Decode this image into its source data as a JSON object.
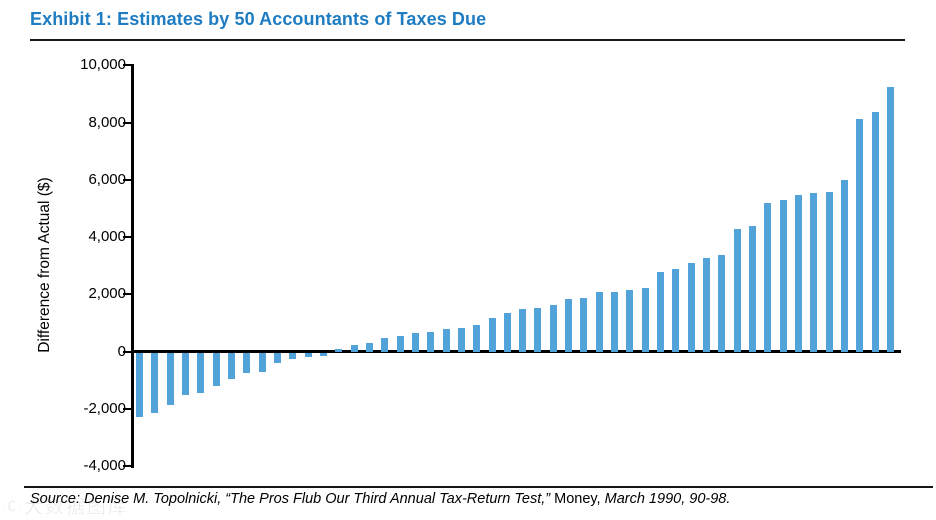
{
  "header": {
    "title": "Exhibit 1: Estimates by 50 Accountants of Taxes Due"
  },
  "chart_data": {
    "type": "bar",
    "title": "Exhibit 1: Estimates by 50 Accountants of Taxes Due",
    "xlabel": "",
    "ylabel": "Difference from Actual ($)",
    "ylim": [
      -4000,
      10000
    ],
    "ytick_values": [
      10000,
      8000,
      6000,
      4000,
      2000,
      0,
      -2000,
      -4000
    ],
    "ytick_labels": [
      "10,000",
      "8,000",
      "6,000",
      "4,000",
      "2,000",
      "0",
      "-2,000",
      "-4,000"
    ],
    "grid": false,
    "legend": false,
    "bar_color": "#52A3DA",
    "values": [
      -2250,
      -2100,
      -1800,
      -1450,
      -1400,
      -1150,
      -900,
      -700,
      -650,
      -350,
      -200,
      -150,
      -100,
      100,
      250,
      300,
      500,
      550,
      650,
      700,
      800,
      850,
      950,
      1200,
      1350,
      1500,
      1550,
      1650,
      1850,
      1900,
      2100,
      2100,
      2150,
      2250,
      2800,
      2900,
      3100,
      3300,
      3400,
      4300,
      4400,
      5200,
      5300,
      5500,
      5550,
      5600,
      6000,
      8150,
      8400,
      9250
    ]
  },
  "footer": {
    "source_prefix": "Source: Denise M. Topolnicki, “The Pros Flub Our Third Annual Tax-Return Test,” ",
    "source_journal": "Money,",
    "source_suffix": " March 1990, 90-98."
  },
  "watermark": {
    "logo": "Ⓒ",
    "text": "大数据图库"
  },
  "colors": {
    "title_blue": "#1E7CC2",
    "bar_blue": "#52A3DA",
    "axis_black": "#000000"
  }
}
